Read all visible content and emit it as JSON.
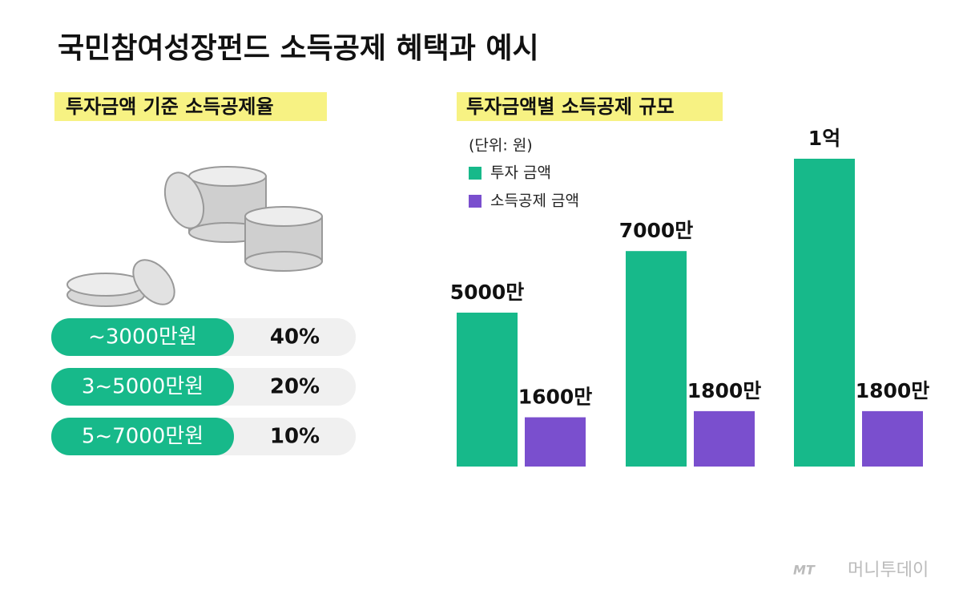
{
  "header": {
    "title": "국민참여성장펀드 소득공제 혜택과 예시"
  },
  "left": {
    "heading": "투자금액 기준 소득공제율",
    "table": {
      "rows": [
        [
          "~3000만원",
          "40%"
        ],
        [
          "3~5000만원",
          "20%"
        ],
        [
          "5~7000만원",
          "10%"
        ]
      ]
    }
  },
  "chart_data": {
    "type": "bar",
    "title": "투자금액별 소득공제 규모",
    "subtitle": "(단위: 원)",
    "categories": [
      null,
      null,
      null
    ],
    "series": [
      {
        "name": "투자 금액",
        "color": "#17b98a",
        "values": [
          50000000,
          70000000,
          100000000
        ],
        "value_labels": [
          "5000만",
          "7000만",
          "1억"
        ]
      },
      {
        "name": "소득공제 금액",
        "color": "#7a4fce",
        "values": [
          16000000,
          18000000,
          18000000
        ],
        "value_labels": [
          "1600만",
          "1800만",
          "1800만"
        ]
      }
    ]
  },
  "footer": {
    "logo": "MT",
    "brand": "머니투데이"
  }
}
